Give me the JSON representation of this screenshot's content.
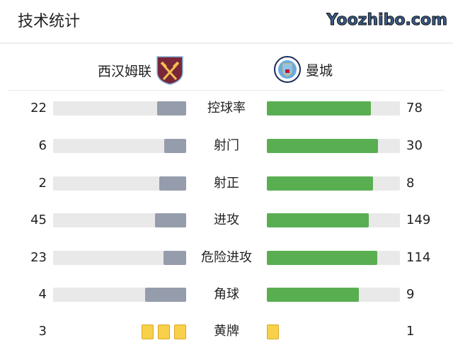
{
  "title": "技术统计",
  "home": {
    "name": "西汉姆联",
    "logo_text": "WEST HAM UNITED",
    "color": "#7a263a"
  },
  "away": {
    "name": "曼城",
    "logo_text": "MANCHESTER CITY",
    "color": "#6cabdd"
  },
  "stats": [
    {
      "label": "控球率",
      "home": 22,
      "away": 78,
      "type": "bar"
    },
    {
      "label": "射门",
      "home": 6,
      "away": 30,
      "type": "bar"
    },
    {
      "label": "射正",
      "home": 2,
      "away": 8,
      "type": "bar"
    },
    {
      "label": "进攻",
      "home": 45,
      "away": 149,
      "type": "bar"
    },
    {
      "label": "危险进攻",
      "home": 23,
      "away": 114,
      "type": "bar"
    },
    {
      "label": "角球",
      "home": 4,
      "away": 9,
      "type": "bar"
    },
    {
      "label": "黄牌",
      "home": 3,
      "away": 1,
      "type": "cards"
    }
  ],
  "colors": {
    "home_bar": "#959cab",
    "away_bar": "#5aae52",
    "track": "#e9e9e9",
    "card": "#f8d04a"
  },
  "watermark": "Yoozhibo.com"
}
